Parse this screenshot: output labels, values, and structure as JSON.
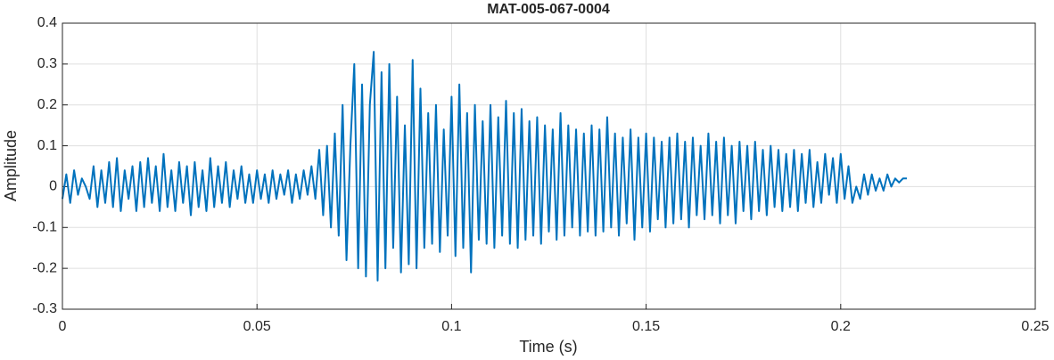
{
  "chart_data": {
    "type": "line",
    "title": "MAT-005-067-0004",
    "x_label": "Time (s)",
    "y_label": "Amplitude",
    "xlim": [
      0,
      0.25
    ],
    "ylim": [
      -0.3,
      0.4
    ],
    "xticks": [
      0,
      0.05,
      0.1,
      0.15,
      0.2,
      0.25
    ],
    "yticks": [
      -0.3,
      -0.2,
      -0.1,
      0,
      0.1,
      0.2,
      0.3,
      0.4
    ],
    "grid": true,
    "x": [
      0,
      0.001,
      0.002,
      0.003,
      0.004,
      0.005,
      0.006,
      0.007,
      0.008,
      0.009,
      0.01,
      0.011,
      0.012,
      0.013,
      0.014,
      0.015,
      0.016,
      0.017,
      0.018,
      0.019,
      0.02,
      0.021,
      0.022,
      0.023,
      0.024,
      0.025,
      0.026,
      0.027,
      0.028,
      0.029,
      0.03,
      0.031,
      0.032,
      0.033,
      0.034,
      0.035,
      0.036,
      0.037,
      0.038,
      0.039,
      0.04,
      0.041,
      0.042,
      0.043,
      0.044,
      0.045,
      0.046,
      0.047,
      0.048,
      0.049,
      0.05,
      0.051,
      0.052,
      0.053,
      0.054,
      0.055,
      0.056,
      0.057,
      0.058,
      0.059,
      0.06,
      0.061,
      0.062,
      0.063,
      0.064,
      0.065,
      0.066,
      0.067,
      0.068,
      0.069,
      0.07,
      0.071,
      0.072,
      0.073,
      0.074,
      0.075,
      0.076,
      0.077,
      0.078,
      0.079,
      0.08,
      0.081,
      0.082,
      0.083,
      0.084,
      0.085,
      0.086,
      0.087,
      0.088,
      0.089,
      0.09,
      0.091,
      0.092,
      0.093,
      0.094,
      0.095,
      0.096,
      0.097,
      0.098,
      0.099,
      0.1,
      0.101,
      0.102,
      0.103,
      0.104,
      0.105,
      0.106,
      0.107,
      0.108,
      0.109,
      0.11,
      0.111,
      0.112,
      0.113,
      0.114,
      0.115,
      0.116,
      0.117,
      0.118,
      0.119,
      0.12,
      0.121,
      0.122,
      0.123,
      0.124,
      0.125,
      0.126,
      0.127,
      0.128,
      0.129,
      0.13,
      0.131,
      0.132,
      0.133,
      0.134,
      0.135,
      0.136,
      0.137,
      0.138,
      0.139,
      0.14,
      0.141,
      0.142,
      0.143,
      0.144,
      0.145,
      0.146,
      0.147,
      0.148,
      0.149,
      0.15,
      0.151,
      0.152,
      0.153,
      0.154,
      0.155,
      0.156,
      0.157,
      0.158,
      0.159,
      0.16,
      0.161,
      0.162,
      0.163,
      0.164,
      0.165,
      0.166,
      0.167,
      0.168,
      0.169,
      0.17,
      0.171,
      0.172,
      0.173,
      0.174,
      0.175,
      0.176,
      0.177,
      0.178,
      0.179,
      0.18,
      0.181,
      0.182,
      0.183,
      0.184,
      0.185,
      0.186,
      0.187,
      0.188,
      0.189,
      0.19,
      0.191,
      0.192,
      0.193,
      0.194,
      0.195,
      0.196,
      0.197,
      0.198,
      0.199,
      0.2,
      0.201,
      0.202,
      0.203,
      0.204,
      0.205,
      0.206,
      0.207,
      0.208,
      0.209,
      0.21,
      0.211,
      0.212,
      0.213,
      0.214,
      0.215,
      0.216,
      0.217
    ],
    "series": [
      {
        "color": "#0072bd",
        "values": [
          -0.03,
          0.03,
          -0.04,
          0.04,
          -0.02,
          0.02,
          0.0,
          -0.03,
          0.05,
          -0.05,
          0.04,
          -0.04,
          0.06,
          -0.05,
          0.07,
          -0.06,
          0.04,
          -0.03,
          0.05,
          -0.06,
          0.06,
          -0.05,
          0.07,
          -0.04,
          0.05,
          -0.06,
          0.08,
          -0.05,
          0.04,
          -0.06,
          0.06,
          -0.04,
          0.05,
          -0.07,
          0.06,
          -0.05,
          0.04,
          -0.06,
          0.07,
          -0.05,
          0.05,
          -0.04,
          0.06,
          -0.05,
          0.04,
          -0.03,
          0.05,
          -0.04,
          0.03,
          -0.04,
          0.04,
          -0.03,
          0.03,
          -0.04,
          0.04,
          -0.03,
          0.03,
          -0.02,
          0.04,
          -0.04,
          0.03,
          -0.03,
          0.04,
          -0.02,
          0.05,
          -0.03,
          0.09,
          -0.07,
          0.1,
          -0.1,
          0.13,
          -0.12,
          0.2,
          -0.18,
          0.1,
          0.3,
          -0.2,
          0.25,
          -0.22,
          0.2,
          0.33,
          -0.23,
          0.28,
          -0.2,
          0.3,
          -0.15,
          0.22,
          -0.21,
          0.15,
          -0.19,
          0.31,
          -0.2,
          0.24,
          -0.15,
          0.18,
          -0.14,
          0.2,
          -0.16,
          0.14,
          -0.12,
          0.22,
          -0.17,
          0.25,
          -0.15,
          0.18,
          -0.21,
          0.2,
          -0.13,
          0.16,
          -0.14,
          0.2,
          -0.15,
          0.17,
          -0.12,
          0.21,
          -0.14,
          0.18,
          -0.15,
          0.19,
          -0.13,
          0.16,
          -0.12,
          0.17,
          -0.14,
          0.15,
          -0.11,
          0.14,
          -0.13,
          0.18,
          -0.12,
          0.15,
          -0.1,
          0.14,
          -0.12,
          0.13,
          -0.11,
          0.15,
          -0.12,
          0.14,
          -0.11,
          0.17,
          -0.1,
          0.13,
          -0.12,
          0.12,
          -0.09,
          0.14,
          -0.13,
          0.12,
          -0.1,
          0.13,
          -0.11,
          0.12,
          -0.08,
          0.11,
          -0.1,
          0.12,
          -0.09,
          0.13,
          -0.08,
          0.11,
          -0.1,
          0.12,
          -0.07,
          0.1,
          -0.08,
          0.13,
          -0.07,
          0.11,
          -0.09,
          0.12,
          -0.07,
          0.1,
          -0.09,
          0.11,
          -0.06,
          0.1,
          -0.08,
          0.11,
          -0.06,
          0.09,
          -0.07,
          0.1,
          -0.05,
          0.09,
          -0.06,
          0.08,
          -0.05,
          0.09,
          -0.06,
          0.08,
          -0.04,
          0.09,
          -0.05,
          0.06,
          -0.04,
          0.08,
          -0.02,
          0.07,
          -0.04,
          0.08,
          -0.03,
          0.05,
          -0.04,
          0.0,
          -0.03,
          0.03,
          -0.02,
          0.03,
          -0.01,
          0.02,
          -0.01,
          0.03,
          0.0,
          0.02,
          0.01,
          0.02,
          0.02
        ]
      }
    ]
  }
}
